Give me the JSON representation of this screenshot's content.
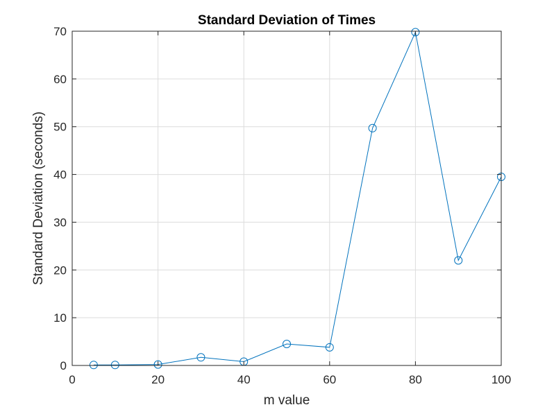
{
  "chart_data": {
    "type": "line",
    "title": "Standard Deviation of Times",
    "xlabel": "m value",
    "ylabel": "Standard Deviation (seconds)",
    "xlim": [
      0,
      100
    ],
    "ylim": [
      0,
      70
    ],
    "xticks": [
      0,
      20,
      40,
      60,
      80,
      100
    ],
    "yticks": [
      0,
      10,
      20,
      30,
      40,
      50,
      60,
      70
    ],
    "xtick_labels": [
      "0",
      "20",
      "40",
      "60",
      "80",
      "100"
    ],
    "ytick_labels": [
      "0",
      "10",
      "20",
      "30",
      "40",
      "50",
      "60",
      "70"
    ],
    "grid": true,
    "marker": "circle",
    "series": [
      {
        "color": "#0072bd",
        "x": [
          5,
          10,
          20,
          30,
          40,
          50,
          60,
          70,
          80,
          90,
          100
        ],
        "y": [
          0.1,
          0.1,
          0.2,
          1.7,
          0.8,
          4.5,
          3.8,
          49.7,
          69.8,
          22.0,
          39.5
        ]
      }
    ]
  }
}
